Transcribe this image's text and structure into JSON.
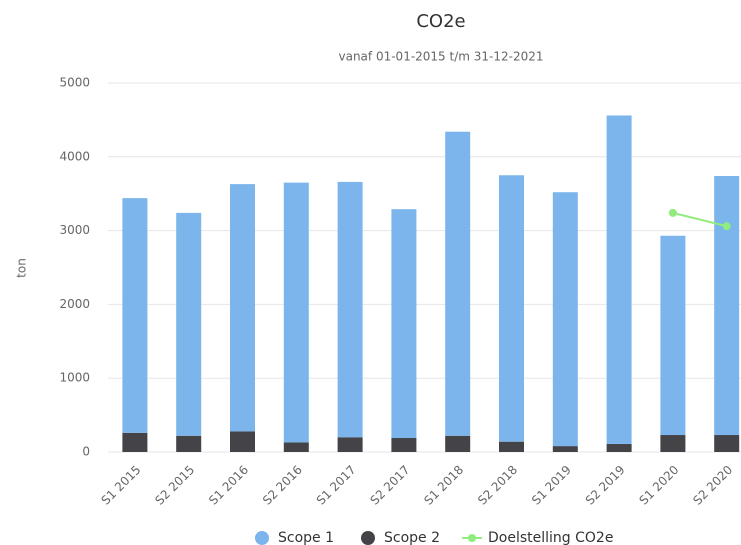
{
  "chart_data": {
    "type": "bar",
    "title": "CO2e",
    "subtitle": "vanaf 01-01-2015 t/m 31-12-2021",
    "y_label": "ton",
    "categories": [
      "S1 2015",
      "S2 2015",
      "S1 2016",
      "S2 2016",
      "S1 2017",
      "S2 2017",
      "S1 2018",
      "S2 2018",
      "S1 2019",
      "S2 2019",
      "S1 2020",
      "S2 2020"
    ],
    "stacked": true,
    "series": [
      {
        "name": "Scope 1",
        "color": "#7cb5ec",
        "values": [
          3180,
          3020,
          3350,
          3520,
          3460,
          3100,
          4120,
          3610,
          3440,
          4450,
          2700,
          3510
        ]
      },
      {
        "name": "Scope 2",
        "color": "#434348",
        "values": [
          260,
          220,
          280,
          130,
          200,
          190,
          220,
          140,
          80,
          110,
          230,
          230
        ]
      },
      {
        "name": "Doelstelling CO2e",
        "color": "#90ed7d",
        "type": "line",
        "values": [
          null,
          null,
          null,
          null,
          null,
          null,
          null,
          null,
          null,
          null,
          3240,
          3060
        ]
      }
    ],
    "ylim": [
      0,
      5000
    ],
    "yticks": [
      0,
      1000,
      2000,
      3000,
      4000,
      5000
    ],
    "grid": true
  }
}
